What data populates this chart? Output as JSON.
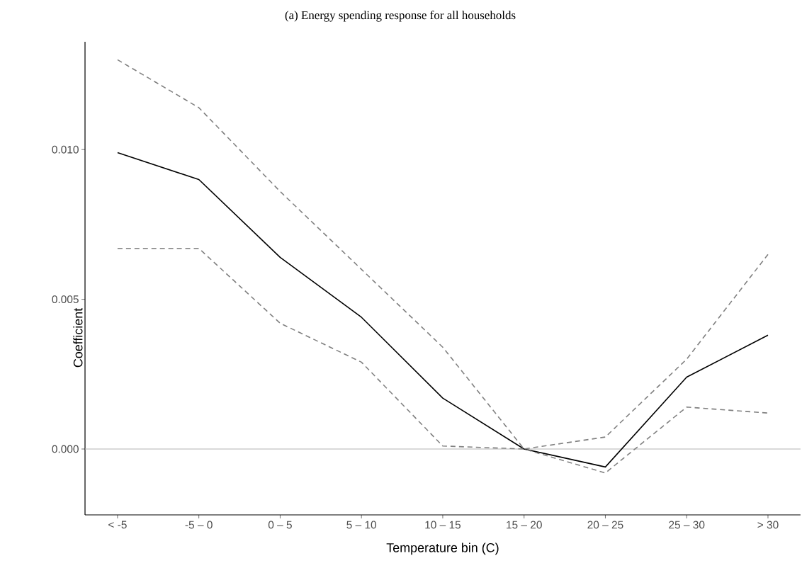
{
  "chart_data": {
    "type": "line",
    "title": "(a) Energy spending response for all households",
    "xlabel": "Temperature bin (C)",
    "ylabel": "Coefficient",
    "categories": [
      "< -5",
      "-5 – 0",
      "0 – 5",
      "5 – 10",
      "10 – 15",
      "15 – 20",
      "20 – 25",
      "25 – 30",
      "> 30"
    ],
    "series": [
      {
        "color": "#000000",
        "line_style": "solid",
        "values": [
          0.0099,
          0.009,
          0.0064,
          0.0044,
          0.0017,
          0.0,
          -0.0006,
          0.0024,
          0.0038
        ]
      },
      {
        "color": "#808080",
        "line_style": "dashed",
        "values": [
          0.013,
          0.0114,
          0.0086,
          0.006,
          0.0034,
          0.0,
          0.0004,
          0.003,
          0.0065
        ]
      },
      {
        "color": "#808080",
        "line_style": "dashed",
        "values": [
          0.0067,
          0.0067,
          0.0042,
          0.0029,
          0.0001,
          0.0,
          -0.0008,
          0.0014,
          0.0012
        ]
      }
    ],
    "ylim": [
      -0.0022,
      0.0136
    ],
    "yticks": [
      {
        "value": 0,
        "label": "0.000"
      },
      {
        "value": 0.005,
        "label": "0.005"
      },
      {
        "value": 0.01,
        "label": "0.010"
      }
    ],
    "ref_lines": [
      {
        "axis": "y",
        "value": 0,
        "color": "#b3b3b3"
      }
    ],
    "grid": false,
    "marker": "none"
  }
}
